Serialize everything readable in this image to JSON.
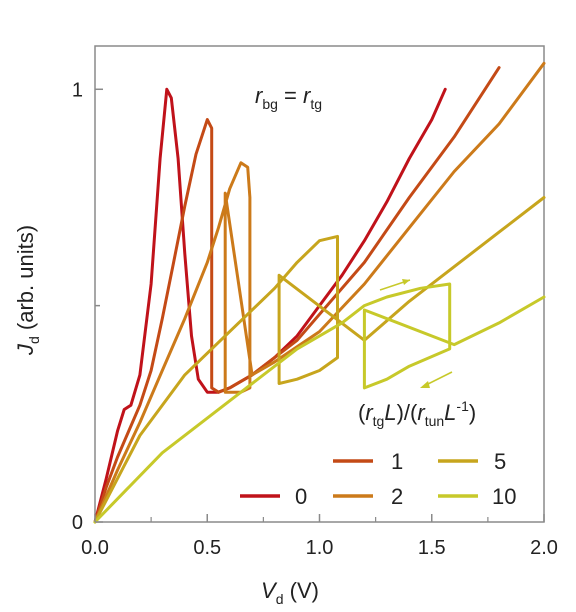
{
  "chart_data": {
    "type": "line",
    "title": "",
    "xlabel": "V_d (V)",
    "ylabel": "J_d (arb. units)",
    "xlim": [
      0,
      2.0
    ],
    "ylim": [
      0,
      1.1
    ],
    "x_ticks": [
      "0.0",
      "0.5",
      "1.0",
      "1.5",
      "2.0"
    ],
    "y_ticks": [
      "0",
      "1"
    ],
    "grid": false,
    "legend_title": "(r_tg L)/(r_tun L^-1)",
    "legend_placement": "bottom-right",
    "annotation": "r_bg = r_tg",
    "hysteresis_arrows": [
      "forward sweep (upper branch)",
      "reverse sweep (lower branch)"
    ],
    "series": [
      {
        "name": "0",
        "color": "#c0121a",
        "points": [
          [
            0,
            0
          ],
          [
            0.05,
            0.1
          ],
          [
            0.1,
            0.21
          ],
          [
            0.13,
            0.26
          ],
          [
            0.16,
            0.27
          ],
          [
            0.2,
            0.34
          ],
          [
            0.25,
            0.55
          ],
          [
            0.29,
            0.84
          ],
          [
            0.32,
            1.0
          ],
          [
            0.34,
            0.98
          ],
          [
            0.37,
            0.84
          ],
          [
            0.4,
            0.62
          ],
          [
            0.43,
            0.43
          ],
          [
            0.46,
            0.33
          ],
          [
            0.5,
            0.3
          ],
          [
            0.55,
            0.3
          ],
          [
            0.6,
            0.31
          ],
          [
            0.7,
            0.34
          ],
          [
            0.8,
            0.38
          ],
          [
            0.9,
            0.43
          ],
          [
            1.0,
            0.5
          ],
          [
            1.1,
            0.57
          ],
          [
            1.2,
            0.65
          ],
          [
            1.3,
            0.74
          ],
          [
            1.4,
            0.84
          ],
          [
            1.5,
            0.93
          ],
          [
            1.56,
            1.0
          ]
        ]
      },
      {
        "name": "1",
        "color": "#c44a16",
        "points": [
          [
            0,
            0
          ],
          [
            0.05,
            0.08
          ],
          [
            0.1,
            0.15
          ],
          [
            0.15,
            0.21
          ],
          [
            0.2,
            0.27
          ],
          [
            0.25,
            0.35
          ],
          [
            0.3,
            0.47
          ],
          [
            0.35,
            0.6
          ],
          [
            0.4,
            0.73
          ],
          [
            0.45,
            0.85
          ],
          [
            0.5,
            0.93
          ],
          [
            0.52,
            0.91
          ],
          [
            0.52,
            0.31
          ],
          [
            0.55,
            0.3
          ],
          [
            0.6,
            0.31
          ],
          [
            0.7,
            0.34
          ],
          [
            0.8,
            0.38
          ],
          [
            0.9,
            0.42
          ],
          [
            1.0,
            0.48
          ],
          [
            1.2,
            0.6
          ],
          [
            1.4,
            0.75
          ],
          [
            1.6,
            0.89
          ],
          [
            1.8,
            1.05
          ]
        ]
      },
      {
        "name": "2",
        "color": "#cc7a1a",
        "points": [
          [
            0,
            0
          ],
          [
            0.1,
            0.12
          ],
          [
            0.2,
            0.23
          ],
          [
            0.3,
            0.35
          ],
          [
            0.4,
            0.47
          ],
          [
            0.5,
            0.6
          ],
          [
            0.55,
            0.68
          ],
          [
            0.6,
            0.77
          ],
          [
            0.65,
            0.83
          ],
          [
            0.68,
            0.82
          ],
          [
            0.69,
            0.75
          ],
          [
            0.69,
            0.31
          ],
          [
            0.65,
            0.3
          ],
          [
            0.6,
            0.3
          ],
          [
            0.58,
            0.3
          ],
          [
            0.58,
            0.76
          ],
          [
            0.7,
            0.34
          ],
          [
            0.8,
            0.37
          ],
          [
            1.0,
            0.44
          ],
          [
            1.2,
            0.55
          ],
          [
            1.4,
            0.68
          ],
          [
            1.6,
            0.81
          ],
          [
            1.8,
            0.92
          ],
          [
            2.0,
            1.06
          ]
        ]
      },
      {
        "name": "5",
        "color": "#c7a51d",
        "points": [
          [
            0,
            0
          ],
          [
            0.2,
            0.2
          ],
          [
            0.4,
            0.34
          ],
          [
            0.6,
            0.44
          ],
          [
            0.8,
            0.54
          ],
          [
            0.9,
            0.6
          ],
          [
            1.0,
            0.65
          ],
          [
            1.08,
            0.66
          ],
          [
            1.08,
            0.38
          ],
          [
            1.0,
            0.35
          ],
          [
            0.9,
            0.33
          ],
          [
            0.82,
            0.32
          ],
          [
            0.82,
            0.57
          ],
          [
            1.2,
            0.42
          ],
          [
            1.4,
            0.51
          ],
          [
            1.6,
            0.59
          ],
          [
            1.8,
            0.67
          ],
          [
            2.0,
            0.75
          ]
        ]
      },
      {
        "name": "10",
        "color": "#c7c92a",
        "points": [
          [
            0,
            0
          ],
          [
            0.3,
            0.16
          ],
          [
            0.6,
            0.28
          ],
          [
            0.9,
            0.4
          ],
          [
            1.1,
            0.46
          ],
          [
            1.2,
            0.5
          ],
          [
            1.3,
            0.52
          ],
          [
            1.45,
            0.54
          ],
          [
            1.58,
            0.55
          ],
          [
            1.58,
            0.4
          ],
          [
            1.4,
            0.36
          ],
          [
            1.3,
            0.33
          ],
          [
            1.2,
            0.31
          ],
          [
            1.2,
            0.49
          ],
          [
            1.6,
            0.41
          ],
          [
            1.8,
            0.46
          ],
          [
            2.0,
            0.52
          ]
        ]
      }
    ]
  },
  "legend": {
    "title_parts": {
      "open1": "(",
      "r1": "r",
      "r1_sub": "tg",
      "L1": "L",
      "close1": ")/(",
      "r2": "r",
      "r2_sub": "tun",
      "L2": "L",
      "L2_sup": "-1",
      "close2": ")"
    },
    "entries": [
      {
        "label": "1"
      },
      {
        "label": "5"
      },
      {
        "label": "0"
      },
      {
        "label": "2"
      },
      {
        "label": "10"
      }
    ]
  },
  "annotation_parts": {
    "r1": "r",
    "sub1": "bg",
    "eq": " = ",
    "r2": "r",
    "sub2": "tg"
  },
  "axes_text": {
    "xlabel_var": "V",
    "xlabel_sub": "d",
    "xlabel_unit": " (V)",
    "ylabel_var": "J",
    "ylabel_sub": "d",
    "ylabel_unit": " (arb. units)"
  }
}
